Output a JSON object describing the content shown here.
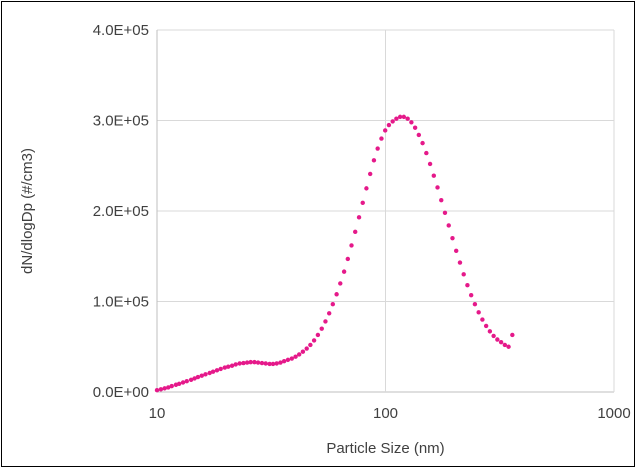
{
  "chart_data": {
    "type": "scatter",
    "title": "",
    "xlabel": "Particle Size (nm)",
    "ylabel": "dN/dlogDp (#/cm3)",
    "xscale": "log",
    "xlim": [
      10,
      1000
    ],
    "ylim": [
      0,
      400000
    ],
    "x_ticks": [
      10,
      100,
      1000
    ],
    "x_tick_labels": [
      "10",
      "100",
      "1000"
    ],
    "y_ticks": [
      0,
      100000,
      200000,
      300000,
      400000
    ],
    "y_tick_labels": [
      "0.0E+00",
      "1.0E+05",
      "2.0E+05",
      "3.0E+05",
      "4.0E+05"
    ],
    "grid": true,
    "legend": "none",
    "marker_color": "#E5198A",
    "series": [
      {
        "x": [
          10.0,
          10.4,
          10.8,
          11.2,
          11.6,
          12.1,
          12.5,
          13.0,
          13.5,
          14.1,
          14.6,
          15.1,
          15.7,
          16.3,
          17.0,
          17.6,
          18.3,
          19.0,
          19.8,
          20.5,
          21.3,
          22.1,
          23.0,
          23.9,
          24.8,
          25.7,
          26.7,
          27.7,
          28.8,
          29.9,
          31.1,
          32.2,
          33.4,
          34.7,
          36.0,
          37.4,
          38.9,
          40.4,
          41.9,
          43.5,
          45.2,
          46.9,
          48.7,
          50.6,
          52.6,
          54.6,
          56.7,
          58.8,
          61.1,
          63.4,
          65.9,
          68.4,
          71.0,
          73.7,
          76.6,
          79.5,
          82.5,
          85.7,
          89.0,
          92.4,
          96.0,
          99.7,
          103.5,
          107.5,
          111.6,
          115.9,
          120.3,
          125.0,
          129.8,
          134.8,
          139.9,
          145.3,
          150.9,
          156.7,
          162.7,
          168.9,
          175.4,
          182.1,
          189.1,
          196.4,
          203.9,
          211.8,
          219.9,
          228.3,
          237.1,
          246.2,
          255.7,
          265.5,
          275.7,
          286.3,
          297.3,
          308.7,
          320.6,
          332.9,
          345.7,
          359.0
        ],
        "y": [
          2000,
          3000,
          4000,
          5000,
          6500,
          8000,
          9000,
          10500,
          12000,
          13500,
          15000,
          16500,
          18000,
          19500,
          21000,
          22500,
          24000,
          25500,
          27000,
          28000,
          29000,
          30500,
          31500,
          32000,
          32500,
          33000,
          33000,
          32500,
          32000,
          31500,
          31000,
          31000,
          31500,
          32500,
          34000,
          35500,
          37000,
          39000,
          41500,
          44500,
          48000,
          52000,
          57000,
          63000,
          70000,
          78000,
          87000,
          97000,
          108000,
          120000,
          133000,
          147000,
          162000,
          177000,
          193000,
          209000,
          225000,
          241000,
          256000,
          269000,
          280000,
          289000,
          295000,
          299000,
          302000,
          304000,
          304000,
          302000,
          298000,
          292000,
          284000,
          275000,
          264000,
          252000,
          239000,
          226000,
          212000,
          198000,
          184000,
          170000,
          156000,
          143000,
          130000,
          118000,
          107000,
          97000,
          88000,
          80000,
          73000,
          67000,
          62000,
          58000,
          55000,
          52000,
          50000,
          63000
        ]
      }
    ]
  }
}
